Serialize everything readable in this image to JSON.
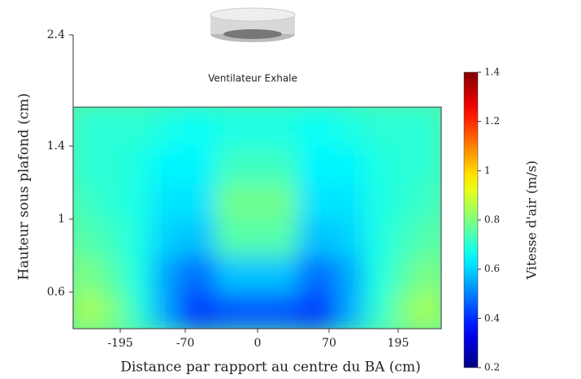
{
  "chart_data": {
    "type": "heatmap",
    "annotation": "Ventilateur Exhale",
    "xlabel": "Distance par rapport au centre du BA (cm)",
    "ylabel": "Hauteur sous plafond (cm)",
    "colorbar_label": "Vitesse d'air (m/s)",
    "colormap": "jet",
    "xlim": [
      -285,
      285
    ],
    "xticks": [
      -195,
      -70,
      0,
      70,
      195
    ],
    "ylim": [
      0.4,
      2.4
    ],
    "yticks": [
      0.6,
      1,
      1.4,
      2.4
    ],
    "clim": [
      0.2,
      1.4
    ],
    "cticks": [
      0.2,
      0.4,
      0.6,
      0.8,
      1.0,
      1.2,
      1.4
    ],
    "x_edges": [
      -285,
      -235,
      -185,
      -135,
      -85,
      -40,
      0,
      40,
      85,
      135,
      185,
      235,
      285
    ],
    "y_edges": [
      0.4,
      0.6,
      0.8,
      1.0,
      1.2,
      1.4,
      1.75
    ],
    "z": [
      [
        0.85,
        0.8,
        0.7,
        0.55,
        0.42,
        0.45,
        0.45,
        0.42,
        0.55,
        0.7,
        0.8,
        0.85
      ],
      [
        0.8,
        0.75,
        0.68,
        0.55,
        0.48,
        0.58,
        0.58,
        0.48,
        0.55,
        0.68,
        0.75,
        0.8
      ],
      [
        0.75,
        0.72,
        0.68,
        0.6,
        0.58,
        0.75,
        0.75,
        0.58,
        0.6,
        0.68,
        0.72,
        0.75
      ],
      [
        0.72,
        0.7,
        0.68,
        0.62,
        0.62,
        0.78,
        0.78,
        0.62,
        0.62,
        0.68,
        0.7,
        0.72
      ],
      [
        0.7,
        0.7,
        0.68,
        0.64,
        0.64,
        0.72,
        0.72,
        0.64,
        0.64,
        0.68,
        0.7,
        0.7
      ],
      [
        0.7,
        0.7,
        0.7,
        0.68,
        0.66,
        0.68,
        0.68,
        0.66,
        0.68,
        0.7,
        0.7,
        0.7
      ]
    ]
  }
}
